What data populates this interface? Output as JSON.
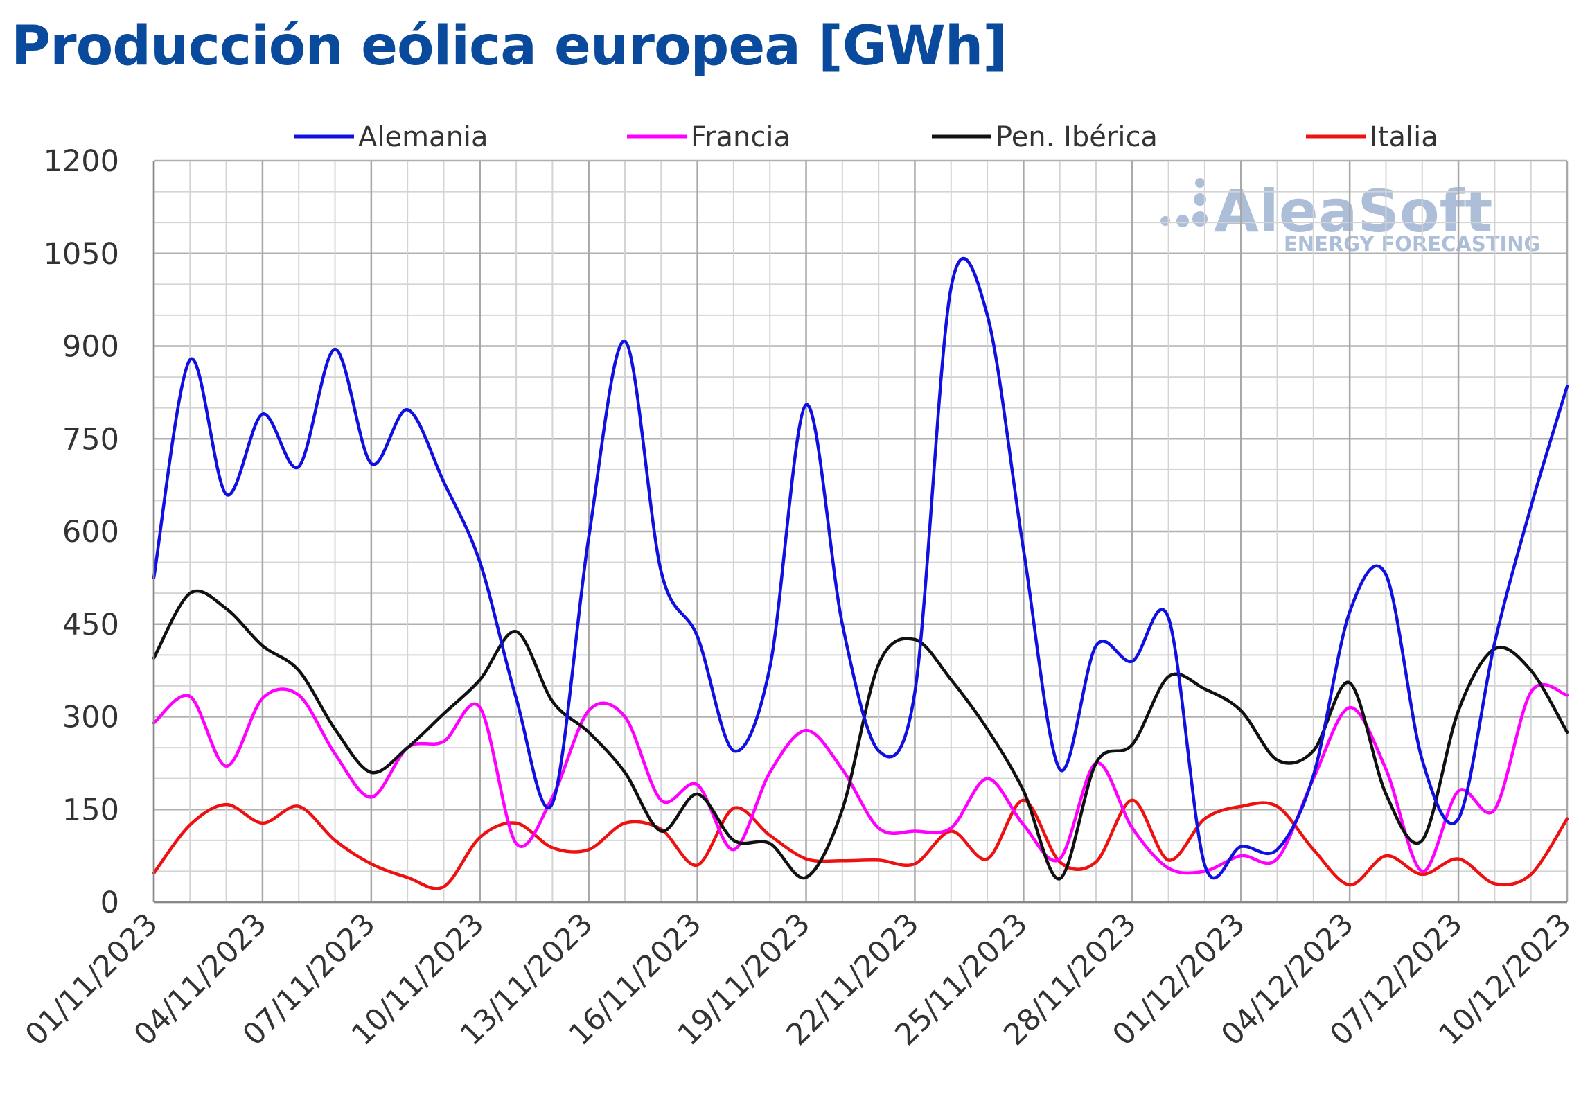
{
  "chart_data": {
    "type": "line",
    "title": "Producción eólica europea [GWh]",
    "ylim": [
      0,
      1200
    ],
    "y_ticks": [
      "0",
      "150",
      "300",
      "450",
      "600",
      "750",
      "900",
      "1050",
      "1200"
    ],
    "x_tick_labels": [
      "01/11/2023",
      "04/11/2023",
      "07/11/2023",
      "10/11/2023",
      "13/11/2023",
      "16/11/2023",
      "19/11/2023",
      "22/11/2023",
      "25/11/2023",
      "28/11/2023",
      "01/12/2023",
      "04/12/2023",
      "07/12/2023",
      "10/12/2023"
    ],
    "x": [
      "01/11/2023",
      "02/11/2023",
      "03/11/2023",
      "04/11/2023",
      "05/11/2023",
      "06/11/2023",
      "07/11/2023",
      "08/11/2023",
      "09/11/2023",
      "10/11/2023",
      "11/11/2023",
      "12/11/2023",
      "13/11/2023",
      "14/11/2023",
      "15/11/2023",
      "16/11/2023",
      "17/11/2023",
      "18/11/2023",
      "19/11/2023",
      "20/11/2023",
      "21/11/2023",
      "22/11/2023",
      "23/11/2023",
      "24/11/2023",
      "25/11/2023",
      "26/11/2023",
      "27/11/2023",
      "28/11/2023",
      "29/11/2023",
      "30/11/2023",
      "01/12/2023",
      "02/12/2023",
      "03/12/2023",
      "04/12/2023",
      "05/12/2023",
      "06/12/2023",
      "07/12/2023",
      "08/12/2023",
      "09/12/2023",
      "10/12/2023"
    ],
    "grid": true,
    "legend_position": "top",
    "series": [
      {
        "name": "Alemania",
        "color": "#1010e0",
        "values": [
          525,
          878,
          660,
          790,
          705,
          895,
          710,
          797,
          680,
          550,
          330,
          160,
          590,
          908,
          535,
          430,
          245,
          380,
          805,
          450,
          245,
          340,
          995,
          950,
          570,
          215,
          415,
          390,
          460,
          60,
          90,
          85,
          205,
          470,
          530,
          230,
          135,
          420,
          640,
          835
        ]
      },
      {
        "name": "Francia",
        "color": "#ff00ff",
        "values": [
          290,
          333,
          220,
          330,
          335,
          240,
          170,
          250,
          260,
          315,
          95,
          170,
          310,
          300,
          165,
          190,
          85,
          210,
          278,
          215,
          120,
          115,
          120,
          200,
          125,
          70,
          225,
          120,
          55,
          50,
          75,
          70,
          200,
          315,
          215,
          50,
          180,
          150,
          340,
          335
        ]
      },
      {
        "name": "Pen. Ibérica",
        "color": "#111111",
        "values": [
          395,
          500,
          475,
          415,
          375,
          280,
          210,
          250,
          305,
          360,
          438,
          325,
          275,
          210,
          115,
          175,
          100,
          95,
          40,
          150,
          385,
          425,
          360,
          280,
          180,
          38,
          225,
          255,
          365,
          345,
          310,
          230,
          245,
          355,
          175,
          100,
          310,
          410,
          375,
          275
        ]
      },
      {
        "name": "Italia",
        "color": "#ee1111",
        "values": [
          47,
          125,
          158,
          128,
          155,
          100,
          62,
          40,
          25,
          105,
          128,
          88,
          85,
          128,
          118,
          60,
          152,
          108,
          70,
          67,
          68,
          62,
          115,
          70,
          165,
          65,
          65,
          165,
          68,
          135,
          155,
          155,
          85,
          28,
          75,
          45,
          70,
          30,
          45,
          135
        ]
      }
    ]
  },
  "watermark": {
    "name": "AleaSoft",
    "tagline": "ENERGY FORECASTING"
  }
}
